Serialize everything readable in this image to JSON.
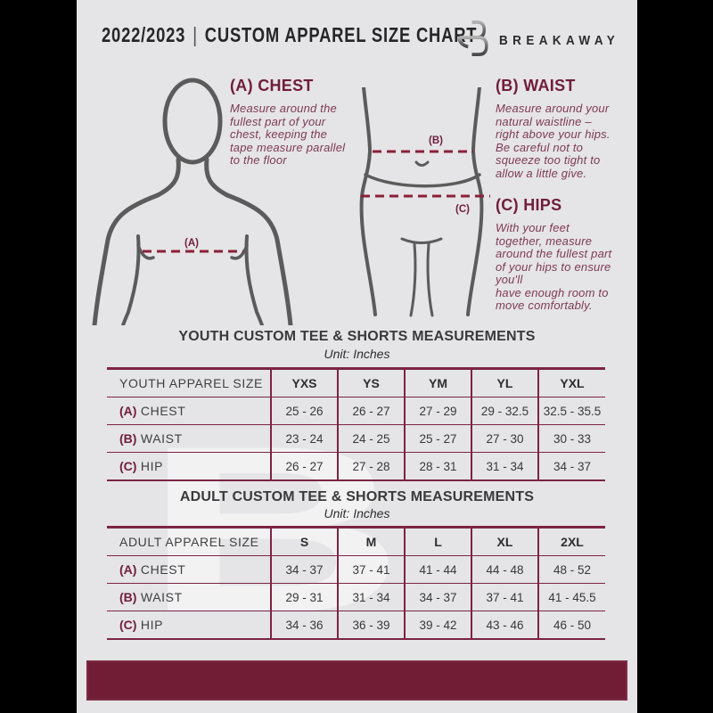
{
  "colors": {
    "accent_maroon": "#721d36",
    "heading_maroon": "#701d3d",
    "body_maroon": "#7e3a55",
    "table_border": "#7b2543",
    "dash_line": "#8a2038",
    "text_dark": "#303030",
    "figure_gray": "#5b5b5b",
    "page_bg": "#e5e4e6",
    "side_bg": "#000000"
  },
  "header": {
    "season": "2022/2023",
    "separator": "|",
    "title": "CUSTOM APPAREL SIZE CHART",
    "brand": "BREAKAWAY",
    "logo_icon": "breakaway-b-monogram"
  },
  "instructions": {
    "chest": {
      "heading": "(A) CHEST",
      "body": "Measure around the\nfullest part of your\nchest, keeping the\ntape measure parallel\nto the floor"
    },
    "waist": {
      "heading": "(B) WAIST",
      "body": "Measure around your\nnatural waistline –\nright above your hips.\nBe careful not to\nsqueeze too tight to\nallow a little give."
    },
    "hips": {
      "heading": "(C) HIPS",
      "body": "With your feet\ntogether, measure\naround the fullest part\nof your hips to ensure\nyou'll\nhave enough room to\nmove comfortably."
    }
  },
  "diagram": {
    "chest_label": "(A)",
    "waist_label": "(B)",
    "hip_label": "(C)"
  },
  "tables": [
    {
      "title": "YOUTH CUSTOM TEE & SHORTS MEASUREMENTS",
      "unit": "Unit: Inches",
      "size_column_label": "YOUTH APPAREL SIZE",
      "sizes": [
        "YXS",
        "YS",
        "YM",
        "YL",
        "YXL"
      ],
      "rows": [
        {
          "key": "(A)",
          "label": "CHEST",
          "values": [
            "25 - 26",
            "26 - 27",
            "27 - 29",
            "29 - 32.5",
            "32.5 - 35.5"
          ]
        },
        {
          "key": "(B)",
          "label": "WAIST",
          "values": [
            "23 - 24",
            "24 - 25",
            "25 - 27",
            "27 - 30",
            "30 - 33"
          ]
        },
        {
          "key": "(C)",
          "label": "HIP",
          "values": [
            "26 - 27",
            "27 - 28",
            "28 - 31",
            "31 - 34",
            "34 - 37"
          ]
        }
      ]
    },
    {
      "title": "ADULT CUSTOM TEE & SHORTS MEASUREMENTS",
      "unit": "Unit: Inches",
      "size_column_label": "ADULT APPAREL SIZE",
      "sizes": [
        "S",
        "M",
        "L",
        "XL",
        "2XL"
      ],
      "rows": [
        {
          "key": "(A)",
          "label": "CHEST",
          "values": [
            "34 - 37",
            "37 - 41",
            "41 - 44",
            "44 - 48",
            "48 - 52"
          ]
        },
        {
          "key": "(B)",
          "label": "WAIST",
          "values": [
            "29 - 31",
            "31 - 34",
            "34 - 37",
            "37 - 41",
            "41 - 45.5"
          ]
        },
        {
          "key": "(C)",
          "label": "HIP",
          "values": [
            "34 - 36",
            "36 - 39",
            "39 - 42",
            "43 - 46",
            "46 - 50"
          ]
        }
      ]
    }
  ],
  "watermark": "B"
}
